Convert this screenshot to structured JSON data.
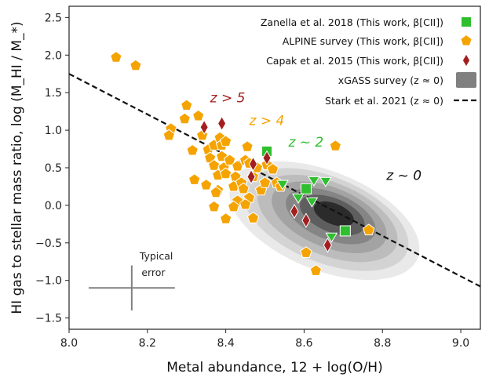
{
  "chart_data": {
    "type": "scatter",
    "xlabel": "Metal abundance, 12 + log(O/H)",
    "ylabel": "HI gas to stellar mass ratio, log (M_HI / M_*)",
    "xlim": [
      8.0,
      9.05
    ],
    "ylim": [
      -1.65,
      2.65
    ],
    "x_ticks": [
      "8.0",
      "8.2",
      "8.4",
      "8.6",
      "8.8",
      "9.0"
    ],
    "y_ticks": [
      "-1.5",
      "-1.0",
      "-0.5",
      "0.0",
      "0.5",
      "1.0",
      "1.5",
      "2.0",
      "2.5"
    ],
    "grid": false,
    "legend_position": "top-right",
    "legend": [
      {
        "label": "Zanella et al. 2018 (This work, β[CII])",
        "marker": "square",
        "color": "#2fbf2f"
      },
      {
        "label": "ALPINE survey (This work, β[CII])",
        "marker": "pentagon",
        "color": "#f5a300"
      },
      {
        "label": "Capak et al. 2015 (This work, β[CII])",
        "marker": "diamond",
        "color": "#a31f1f"
      },
      {
        "label": "xGASS survey (z ≈ 0)",
        "marker": "contour",
        "color": "#808080"
      },
      {
        "label": "Stark et al. 2021 (z ≈ 0)",
        "marker": "dashed-line",
        "color": "#111111"
      }
    ],
    "annotations": [
      {
        "text": "z > 5",
        "x": 8.36,
        "y": 1.37,
        "color": "#a31f1f"
      },
      {
        "text": "z > 4",
        "x": 8.46,
        "y": 1.07,
        "color": "#f5a300"
      },
      {
        "text": "z ~ 2",
        "x": 8.56,
        "y": 0.78,
        "color": "#2fbf2f"
      },
      {
        "text": "z ~ 0",
        "x": 8.81,
        "y": 0.34,
        "color": "#111111"
      },
      {
        "text": "Typical",
        "x": 8.18,
        "y": -0.72,
        "color": "#222222"
      },
      {
        "text": "error",
        "x": 8.185,
        "y": -0.94,
        "color": "#222222"
      }
    ],
    "typical_error": {
      "x": 8.16,
      "y": -1.1,
      "xerr": 0.11,
      "yerr": 0.3
    },
    "stark_relation": {
      "x": [
        8.0,
        9.05
      ],
      "y": [
        1.75,
        -1.08
      ]
    },
    "xgass_contours": {
      "center": [
        8.68,
        -0.1
      ],
      "levels": 7
    },
    "series": [
      {
        "name": "Zanella et al. 2018 (This work, β[CII])",
        "marker": "square",
        "color": "#2fbf2f",
        "points": [
          [
            8.505,
            0.72
          ],
          [
            8.605,
            0.22
          ],
          [
            8.705,
            -0.34
          ]
        ]
      },
      {
        "name": "Zanella et al. 2018 (This work, β[CII])",
        "marker": "triangle-down",
        "color": "#2fbf2f",
        "points": [
          [
            8.545,
            0.28
          ],
          [
            8.625,
            0.33
          ],
          [
            8.655,
            0.32
          ],
          [
            8.585,
            0.1
          ],
          [
            8.62,
            0.05
          ],
          [
            8.67,
            -0.42
          ]
        ]
      },
      {
        "name": "ALPINE survey (This work, β[CII])",
        "marker": "pentagon",
        "color": "#f5a300",
        "points": [
          [
            8.12,
            1.97
          ],
          [
            8.17,
            1.86
          ],
          [
            8.26,
            1.02
          ],
          [
            8.255,
            0.93
          ],
          [
            8.3,
            1.33
          ],
          [
            8.295,
            1.15
          ],
          [
            8.33,
            1.19
          ],
          [
            8.315,
            0.73
          ],
          [
            8.34,
            0.93
          ],
          [
            8.355,
            0.74
          ],
          [
            8.37,
            0.8
          ],
          [
            8.36,
            0.63
          ],
          [
            8.385,
            0.9
          ],
          [
            8.39,
            0.8
          ],
          [
            8.37,
            0.53
          ],
          [
            8.39,
            0.65
          ],
          [
            8.4,
            0.85
          ],
          [
            8.395,
            0.5
          ],
          [
            8.41,
            0.6
          ],
          [
            8.38,
            0.4
          ],
          [
            8.4,
            0.42
          ],
          [
            8.425,
            0.38
          ],
          [
            8.43,
            0.52
          ],
          [
            8.42,
            0.25
          ],
          [
            8.44,
            0.3
          ],
          [
            8.45,
            0.6
          ],
          [
            8.455,
            0.78
          ],
          [
            8.46,
            0.56
          ],
          [
            8.445,
            0.22
          ],
          [
            8.47,
            0.38
          ],
          [
            8.48,
            0.5
          ],
          [
            8.49,
            0.2
          ],
          [
            8.5,
            0.3
          ],
          [
            8.505,
            0.54
          ],
          [
            8.52,
            0.48
          ],
          [
            8.53,
            0.3
          ],
          [
            8.54,
            0.25
          ],
          [
            8.46,
            0.1
          ],
          [
            8.43,
            0.06
          ],
          [
            8.38,
            0.2
          ],
          [
            8.42,
            -0.02
          ],
          [
            8.45,
            0.01
          ],
          [
            8.375,
            0.17
          ],
          [
            8.35,
            0.27
          ],
          [
            8.32,
            0.34
          ],
          [
            8.37,
            -0.02
          ],
          [
            8.47,
            -0.17
          ],
          [
            8.4,
            -0.18
          ],
          [
            8.68,
            0.79
          ],
          [
            8.605,
            -0.63
          ],
          [
            8.63,
            -0.87
          ],
          [
            8.765,
            -0.33
          ]
        ]
      },
      {
        "name": "Capak et al. 2015 (This work, β[CII])",
        "marker": "diamond",
        "color": "#a31f1f",
        "points": [
          [
            8.345,
            1.04
          ],
          [
            8.39,
            1.09
          ],
          [
            8.505,
            0.63
          ],
          [
            8.47,
            0.55
          ],
          [
            8.465,
            0.38
          ],
          [
            8.575,
            -0.08
          ],
          [
            8.605,
            -0.2
          ],
          [
            8.66,
            -0.53
          ]
        ]
      }
    ]
  }
}
